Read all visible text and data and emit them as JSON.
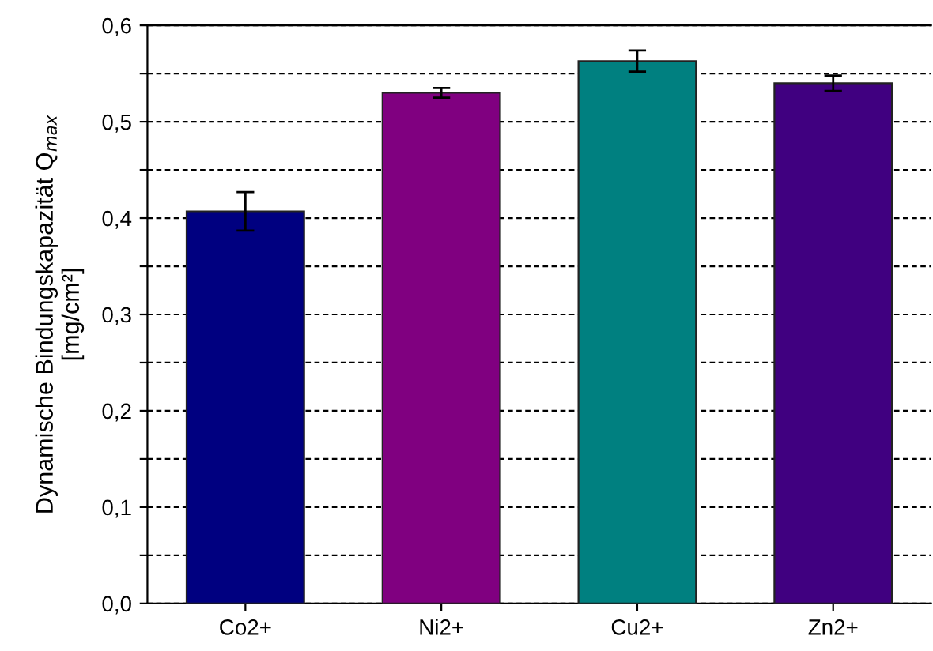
{
  "chart_data": {
    "type": "bar",
    "ylabel": "Dynamische Bindungskapazität Q$_{max}$\n[mg/cm²]",
    "categories": [
      "Co2+",
      "Ni2+",
      "Cu2+",
      "Zn2+"
    ],
    "values": [
      0.407,
      0.53,
      0.563,
      0.54
    ],
    "errors": [
      0.02,
      0.005,
      0.011,
      0.008
    ],
    "colors": [
      "#000080",
      "#800080",
      "#008080",
      "#400080"
    ],
    "ylim": [
      0,
      0.6
    ],
    "yticks": [
      {
        "value": 0,
        "label": "0,0"
      },
      {
        "value": 0.05,
        "label": null
      },
      {
        "value": 0.1,
        "label": "0,1"
      },
      {
        "value": 0.15,
        "label": null
      },
      {
        "value": 0.2,
        "label": "0,2"
      },
      {
        "value": 0.25,
        "label": null
      },
      {
        "value": 0.3,
        "label": "0,3"
      },
      {
        "value": 0.35,
        "label": null
      },
      {
        "value": 0.4,
        "label": "0,4"
      },
      {
        "value": 0.45,
        "label": null
      },
      {
        "value": 0.5,
        "label": "0,5"
      },
      {
        "value": 0.55,
        "label": null
      },
      {
        "value": 0.6,
        "label": "0,6"
      }
    ],
    "grid": "y"
  }
}
